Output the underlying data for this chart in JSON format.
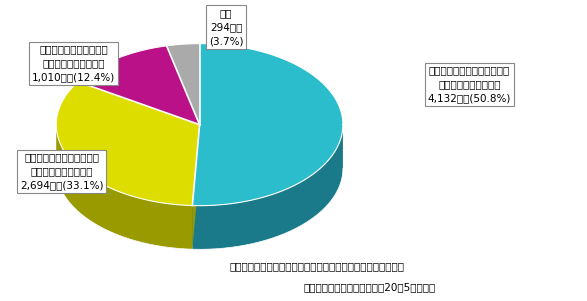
{
  "slices": [
    {
      "label": "すべての建物が新耐震基準に\n従って建設された病院\n4,132病院(50.8%)",
      "value": 50.8,
      "color": "#2BBDCC",
      "shadow_color": "#1A7A8A"
    },
    {
      "label": "一部の建物が新耐震基準に\n従って建設された病院\n2,694病院(33.1%)",
      "value": 33.1,
      "color": "#DDDD00",
      "shadow_color": "#999900"
    },
    {
      "label": "新耐震基準に従って建設\nされた建物がない病院\n1,010病院(12.4%)",
      "value": 12.4,
      "color": "#BB1188",
      "shadow_color": "#880066"
    },
    {
      "label": "不明\n294病院\n(3.7%)",
      "value": 3.7,
      "color": "#AAAAAA",
      "shadow_color": "#777777"
    }
  ],
  "figsize": [
    5.87,
    3.01
  ],
  "dpi": 100,
  "background_color": "#FFFFFF",
  "footnote1": "対象：二十人以上の患者を入院させるための施設を有する病院",
  "footnote2": "厚生労働省資料による（平成20年5月現在）"
}
